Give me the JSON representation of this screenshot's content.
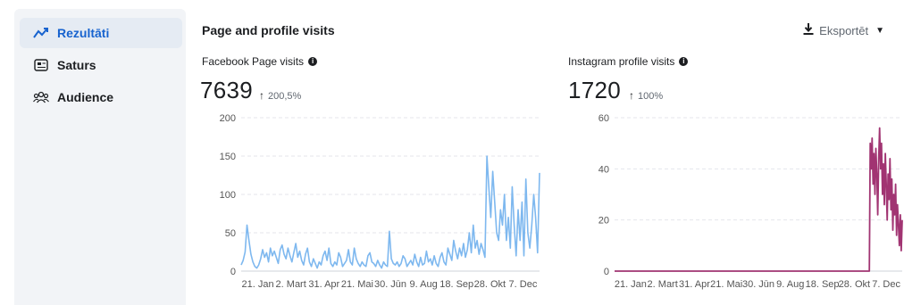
{
  "sidebar": {
    "items": [
      {
        "label": "Rezultāti",
        "icon": "trend-line-icon",
        "active": true
      },
      {
        "label": "Saturs",
        "icon": "content-icon",
        "active": false
      },
      {
        "label": "Audience",
        "icon": "people-icon",
        "active": false
      }
    ]
  },
  "header": {
    "title": "Page and profile visits",
    "export_label": "Eksportēt"
  },
  "cards": [
    {
      "title": "Facebook Page visits",
      "value": "7639",
      "delta": "200,5%"
    },
    {
      "title": "Instagram profile visits",
      "value": "1720",
      "delta": "100%"
    }
  ],
  "colors": {
    "accent": "#1763cf",
    "facebook_line": "#7eb8ef",
    "instagram_line": "#a13472",
    "grid": "#e4e6eb"
  },
  "chart_data": [
    {
      "type": "line",
      "ylim": [
        0,
        200
      ],
      "yticks": [
        0,
        50,
        100,
        150,
        200
      ],
      "xtick_labels": [
        "21. Jan",
        "2. Mart",
        "31. Apr",
        "21. Mai",
        "30. Jūn",
        "9. Aug",
        "18. Sep",
        "28. Okt",
        "7. Dec"
      ],
      "grid": true,
      "series": [
        {
          "values": [
            8,
            14,
            25,
            60,
            40,
            22,
            12,
            6,
            4,
            8,
            16,
            28,
            18,
            24,
            12,
            30,
            20,
            26,
            18,
            10,
            28,
            34,
            22,
            16,
            30,
            20,
            12,
            24,
            36,
            18,
            26,
            14,
            8,
            22,
            30,
            12,
            6,
            16,
            10,
            4,
            12,
            8,
            20,
            26,
            14,
            30,
            10,
            6,
            12,
            8,
            24,
            18,
            6,
            10,
            14,
            28,
            12,
            8,
            30,
            16,
            10,
            6,
            12,
            8,
            6,
            20,
            24,
            12,
            10,
            6,
            14,
            8,
            4,
            12,
            8,
            6,
            52,
            16,
            10,
            8,
            12,
            6,
            10,
            20,
            16,
            6,
            10,
            14,
            8,
            22,
            12,
            6,
            18,
            8,
            10,
            26,
            12,
            16,
            8,
            20,
            10,
            6,
            18,
            24,
            12,
            8,
            30,
            22,
            14,
            40,
            26,
            16,
            30,
            20,
            36,
            18,
            28,
            50,
            24,
            60,
            30,
            40,
            22,
            36,
            28,
            18,
            150,
            110,
            70,
            130,
            90,
            50,
            40,
            80,
            60,
            100,
            40,
            70,
            30,
            110,
            60,
            20,
            80,
            40,
            90,
            20,
            120,
            50,
            30,
            60,
            100,
            70,
            24,
            128
          ]
        }
      ]
    },
    {
      "type": "line",
      "ylim": [
        0,
        60
      ],
      "yticks": [
        0,
        20,
        40,
        60
      ],
      "xtick_labels": [
        "21. Jan",
        "2. Mart",
        "31. Apr",
        "21. Mai",
        "30. Jūn",
        "9. Aug",
        "18. Sep",
        "28. Okt",
        "7. Dec"
      ],
      "grid": true,
      "series": [
        {
          "values": [
            0,
            0,
            0,
            0,
            0,
            0,
            0,
            0,
            0,
            0,
            0,
            0,
            0,
            0,
            0,
            0,
            0,
            0,
            0,
            0,
            0,
            0,
            0,
            0,
            0,
            0,
            0,
            0,
            0,
            0,
            0,
            0,
            0,
            0,
            0,
            0,
            0,
            0,
            0,
            0,
            0,
            0,
            0,
            0,
            0,
            0,
            0,
            0,
            0,
            0,
            0,
            0,
            0,
            0,
            0,
            0,
            0,
            0,
            0,
            0,
            0,
            0,
            0,
            0,
            0,
            0,
            0,
            0,
            0,
            0,
            0,
            0,
            0,
            0,
            0,
            0,
            0,
            0,
            0,
            0,
            0,
            0,
            0,
            0,
            0,
            0,
            0,
            0,
            0,
            0,
            0,
            0,
            0,
            0,
            0,
            0,
            0,
            0,
            0,
            0,
            0,
            0,
            0,
            0,
            0,
            0,
            0,
            0,
            0,
            0,
            0,
            0,
            0,
            0,
            0,
            0,
            0,
            0,
            0,
            0,
            0,
            0,
            0,
            0,
            0,
            0,
            0,
            0,
            0,
            0,
            0,
            0,
            0,
            0,
            0,
            0,
            0,
            0,
            0,
            0,
            0,
            0,
            0,
            0,
            0,
            0,
            0,
            0,
            0,
            0,
            0,
            0,
            0,
            0,
            0,
            0,
            0,
            0,
            0,
            0,
            0,
            0,
            0,
            0,
            0,
            0,
            0,
            0,
            0,
            0,
            0,
            0,
            0,
            0,
            0,
            0,
            0,
            0,
            0,
            0,
            0,
            0,
            0,
            0,
            0,
            0,
            0,
            0,
            0,
            0,
            0,
            0,
            0,
            0,
            0,
            0,
            0,
            0,
            0,
            0,
            0,
            0,
            0,
            0,
            0,
            0,
            0,
            0,
            0,
            0,
            0,
            0,
            0,
            0,
            0,
            0,
            0,
            0,
            0,
            0,
            0,
            0,
            0,
            0,
            0,
            0,
            0,
            0,
            0,
            0,
            0,
            0,
            0,
            0,
            0,
            0,
            0,
            0,
            0,
            0,
            0,
            0,
            0,
            0,
            0,
            0,
            0,
            0,
            0,
            0,
            0,
            0,
            0,
            0,
            0,
            0,
            0,
            0,
            0,
            0,
            0,
            0,
            0,
            0,
            0,
            0,
            0,
            0,
            0,
            0,
            0,
            0,
            50,
            40,
            52,
            34,
            46,
            30,
            48,
            38,
            22,
            44,
            56,
            40,
            50,
            30,
            42,
            26,
            46,
            34,
            20,
            38,
            28,
            44,
            24,
            36,
            16,
            30,
            22,
            34,
            14,
            26,
            18,
            10,
            22,
            8,
            20
          ]
        }
      ]
    }
  ]
}
